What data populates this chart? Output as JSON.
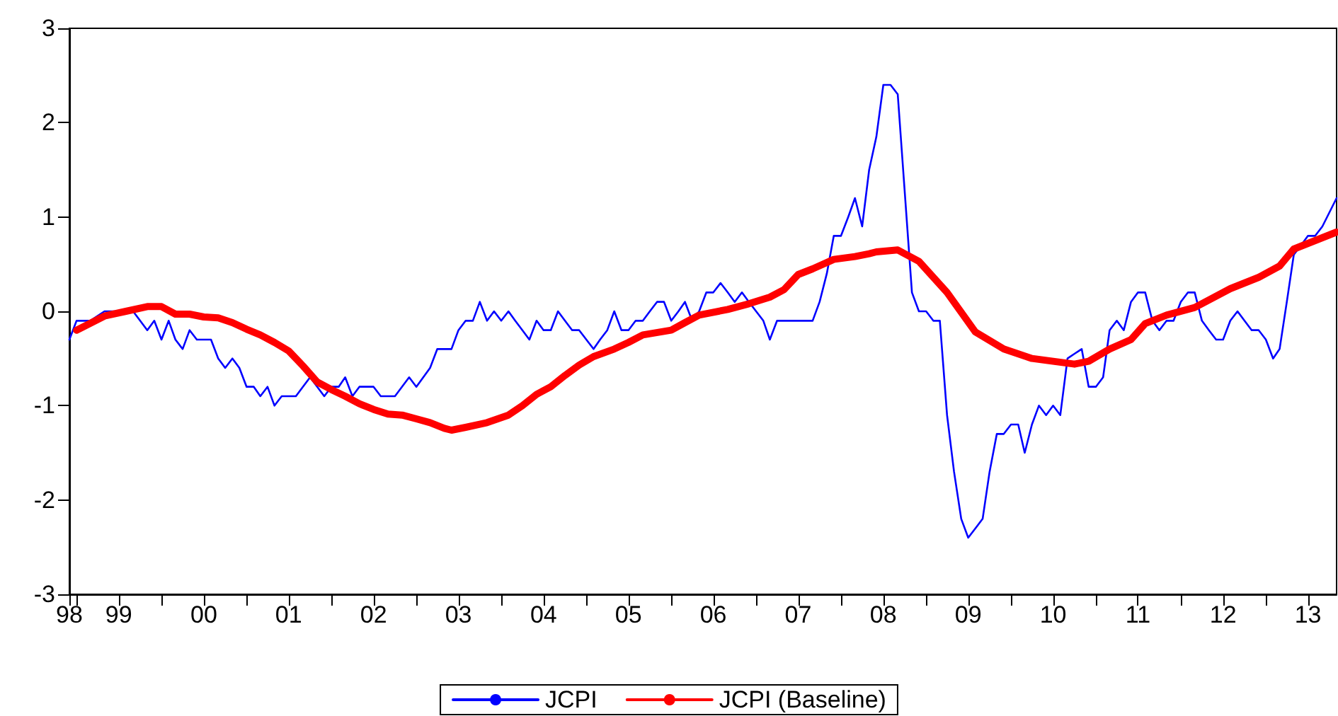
{
  "chart_data": {
    "type": "line",
    "xlim": [
      "1998-12",
      "2013-11"
    ],
    "ylim": [
      -3,
      3
    ],
    "yticks": [
      -3,
      -2,
      -1,
      0,
      1,
      2,
      3
    ],
    "xticks": [
      {
        "value": "1998-12",
        "label": "98"
      },
      {
        "value": "1999-01",
        "label": null
      },
      {
        "value": "1999-07",
        "label": "99"
      },
      {
        "value": "2000-01",
        "label": null
      },
      {
        "value": "2000-07",
        "label": "00"
      },
      {
        "value": "2001-01",
        "label": null
      },
      {
        "value": "2001-07",
        "label": "01"
      },
      {
        "value": "2002-01",
        "label": null
      },
      {
        "value": "2002-07",
        "label": "02"
      },
      {
        "value": "2003-01",
        "label": null
      },
      {
        "value": "2003-07",
        "label": "03"
      },
      {
        "value": "2004-01",
        "label": null
      },
      {
        "value": "2004-07",
        "label": "04"
      },
      {
        "value": "2005-01",
        "label": null
      },
      {
        "value": "2005-07",
        "label": "05"
      },
      {
        "value": "2006-01",
        "label": null
      },
      {
        "value": "2006-07",
        "label": "06"
      },
      {
        "value": "2007-01",
        "label": null
      },
      {
        "value": "2007-07",
        "label": "07"
      },
      {
        "value": "2008-01",
        "label": null
      },
      {
        "value": "2008-07",
        "label": "08"
      },
      {
        "value": "2009-01",
        "label": null
      },
      {
        "value": "2009-07",
        "label": "09"
      },
      {
        "value": "2010-01",
        "label": null
      },
      {
        "value": "2010-07",
        "label": "10"
      },
      {
        "value": "2011-01",
        "label": null
      },
      {
        "value": "2011-07",
        "label": "11"
      },
      {
        "value": "2012-01",
        "label": null
      },
      {
        "value": "2012-07",
        "label": "12"
      },
      {
        "value": "2013-01",
        "label": null
      },
      {
        "value": "2013-07",
        "label": "13"
      }
    ],
    "grid": false,
    "legend": "bottom",
    "marker": "none",
    "series": [
      {
        "name": "JCPI",
        "color": "#0000ff",
        "x": [
          "1998-12",
          "1999-01",
          "1999-03",
          "1999-05",
          "1999-09",
          "1999-11",
          "1999-12",
          "2000-01",
          "2000-02",
          "2000-03",
          "2000-04",
          "2000-05",
          "2000-06",
          "2000-08",
          "2000-09",
          "2000-10",
          "2000-11",
          "2000-12",
          "2001-01",
          "2001-02",
          "2001-03",
          "2001-04",
          "2001-05",
          "2001-06",
          "2001-08",
          "2001-10",
          "2001-12",
          "2002-01",
          "2002-02",
          "2002-03",
          "2002-04",
          "2002-05",
          "2002-07",
          "2002-08",
          "2002-10",
          "2002-12",
          "2003-01",
          "2003-03",
          "2003-04",
          "2003-06",
          "2003-07",
          "2003-08",
          "2003-09",
          "2003-10",
          "2003-11",
          "2003-12",
          "2004-01",
          "2004-02",
          "2004-03",
          "2004-04",
          "2004-05",
          "2004-06",
          "2004-07",
          "2004-08",
          "2004-09",
          "2004-10",
          "2004-11",
          "2004-12",
          "2005-02",
          "2005-03",
          "2005-04",
          "2005-05",
          "2005-06",
          "2005-07",
          "2005-08",
          "2005-09",
          "2005-10",
          "2005-11",
          "2005-12",
          "2006-01",
          "2006-02",
          "2006-03",
          "2006-04",
          "2006-05",
          "2006-06",
          "2006-07",
          "2006-08",
          "2006-09",
          "2006-10",
          "2006-11",
          "2006-12",
          "2007-01",
          "2007-02",
          "2007-03",
          "2007-04",
          "2007-09",
          "2007-10",
          "2007-11",
          "2007-12",
          "2008-01",
          "2008-02",
          "2008-03",
          "2008-04",
          "2008-05",
          "2008-06",
          "2008-07",
          "2008-08",
          "2008-09",
          "2008-11",
          "2008-12",
          "2009-01",
          "2009-02",
          "2009-03",
          "2009-04",
          "2009-05",
          "2009-06",
          "2009-07",
          "2009-08",
          "2009-09",
          "2009-10",
          "2009-11",
          "2009-12",
          "2010-01",
          "2010-02",
          "2010-03",
          "2010-04",
          "2010-05",
          "2010-06",
          "2010-07",
          "2010-08",
          "2010-09",
          "2010-10",
          "2010-11",
          "2010-12",
          "2011-01",
          "2011-02",
          "2011-03",
          "2011-04",
          "2011-05",
          "2011-06",
          "2011-07",
          "2011-08",
          "2011-09",
          "2011-10",
          "2011-11",
          "2011-12",
          "2012-01",
          "2012-02",
          "2012-03",
          "2012-04",
          "2012-05",
          "2012-06",
          "2012-07",
          "2012-08",
          "2012-09",
          "2012-10",
          "2012-11",
          "2012-12",
          "2013-01",
          "2013-02",
          "2013-03",
          "2013-04",
          "2013-05",
          "2013-06",
          "2013-07",
          "2013-08",
          "2013-09",
          "2013-11"
        ],
        "values": [
          -0.3,
          -0.1,
          -0.1,
          0,
          0,
          -0.2,
          -0.1,
          -0.3,
          -0.1,
          -0.3,
          -0.4,
          -0.2,
          -0.3,
          -0.3,
          -0.5,
          -0.6,
          -0.5,
          -0.6,
          -0.8,
          -0.8,
          -0.9,
          -0.8,
          -1.0,
          -0.9,
          -0.9,
          -0.7,
          -0.9,
          -0.8,
          -0.8,
          -0.7,
          -0.9,
          -0.8,
          -0.8,
          -0.9,
          -0.9,
          -0.7,
          -0.8,
          -0.6,
          -0.4,
          -0.4,
          -0.2,
          -0.1,
          -0.1,
          0.1,
          -0.1,
          0,
          -0.1,
          0,
          -0.1,
          -0.2,
          -0.3,
          -0.1,
          -0.2,
          -0.2,
          0,
          -0.1,
          -0.2,
          -0.2,
          -0.4,
          -0.3,
          -0.2,
          0,
          -0.2,
          -0.2,
          -0.1,
          -0.1,
          0,
          0.1,
          0.1,
          -0.1,
          0,
          0.1,
          -0.1,
          0,
          0.2,
          0.2,
          0.3,
          0.2,
          0.1,
          0.2,
          0.1,
          0,
          -0.1,
          -0.3,
          -0.1,
          -0.1,
          0.1,
          0.4,
          0.8,
          0.8,
          1.0,
          1.2,
          0.9,
          1.5,
          1.85,
          2.4,
          2.4,
          2.3,
          0.2,
          0,
          0,
          -0.1,
          -0.1,
          -1.1,
          -1.7,
          -2.2,
          -2.4,
          -2.3,
          -2.2,
          -1.7,
          -1.3,
          -1.3,
          -1.2,
          -1.2,
          -1.5,
          -1.2,
          -1.0,
          -1.1,
          -1.0,
          -1.1,
          -0.5,
          -0.45,
          -0.4,
          -0.8,
          -0.8,
          -0.7,
          -0.2,
          -0.1,
          -0.2,
          0.1,
          0.2,
          0.2,
          -0.1,
          -0.2,
          -0.1,
          -0.1,
          0.1,
          0.2,
          0.2,
          -0.1,
          -0.2,
          -0.3,
          -0.3,
          -0.1,
          0,
          -0.1,
          -0.2,
          -0.2,
          -0.3,
          -0.5,
          -0.4,
          0.1,
          0.6,
          0.7,
          0.8,
          0.8,
          0.9,
          1.2
        ]
      },
      {
        "name": "JCPI (Baseline)",
        "color": "#ff0000",
        "x": [
          "1999-01",
          "1999-05",
          "1999-08",
          "1999-11",
          "2000-01",
          "2000-03",
          "2000-05",
          "2000-07",
          "2000-09",
          "2000-11",
          "2001-01",
          "2001-03",
          "2001-05",
          "2001-07",
          "2001-09",
          "2001-11",
          "2002-01",
          "2002-03",
          "2002-05",
          "2002-07",
          "2002-09",
          "2002-11",
          "2003-01",
          "2003-03",
          "2003-05",
          "2003-06",
          "2003-08",
          "2003-11",
          "2004-02",
          "2004-04",
          "2004-06",
          "2004-08",
          "2004-10",
          "2004-12",
          "2005-02",
          "2005-05",
          "2005-07",
          "2005-09",
          "2006-01",
          "2006-03",
          "2006-05",
          "2006-09",
          "2006-12",
          "2007-03",
          "2007-05",
          "2007-07",
          "2007-09",
          "2007-12",
          "2008-03",
          "2008-05",
          "2008-06",
          "2008-09",
          "2008-12",
          "2009-04",
          "2009-08",
          "2009-12",
          "2010-04",
          "2010-07",
          "2010-10",
          "2010-12",
          "2011-03",
          "2011-06",
          "2011-08",
          "2011-11",
          "2012-03",
          "2012-08",
          "2012-12",
          "2013-03",
          "2013-05",
          "2013-11"
        ],
        "values": [
          -0.2,
          -0.05,
          0,
          0.05,
          0.05,
          -0.03,
          -0.03,
          -0.06,
          -0.07,
          -0.12,
          -0.19,
          -0.25,
          -0.33,
          -0.42,
          -0.58,
          -0.75,
          -0.83,
          -0.9,
          -0.98,
          -1.04,
          -1.09,
          -1.1,
          -1.14,
          -1.18,
          -1.24,
          -1.26,
          -1.23,
          -1.18,
          -1.1,
          -1.0,
          -0.88,
          -0.8,
          -0.68,
          -0.57,
          -0.48,
          -0.4,
          -0.33,
          -0.25,
          -0.2,
          -0.12,
          -0.04,
          0.02,
          0.08,
          0.15,
          0.23,
          0.39,
          0.45,
          0.55,
          0.58,
          0.61,
          0.63,
          0.65,
          0.53,
          0.2,
          -0.22,
          -0.4,
          -0.5,
          -0.53,
          -0.56,
          -0.53,
          -0.4,
          -0.3,
          -0.13,
          -0.04,
          0.04,
          0.24,
          0.36,
          0.48,
          0.66,
          0.84
        ]
      }
    ]
  }
}
